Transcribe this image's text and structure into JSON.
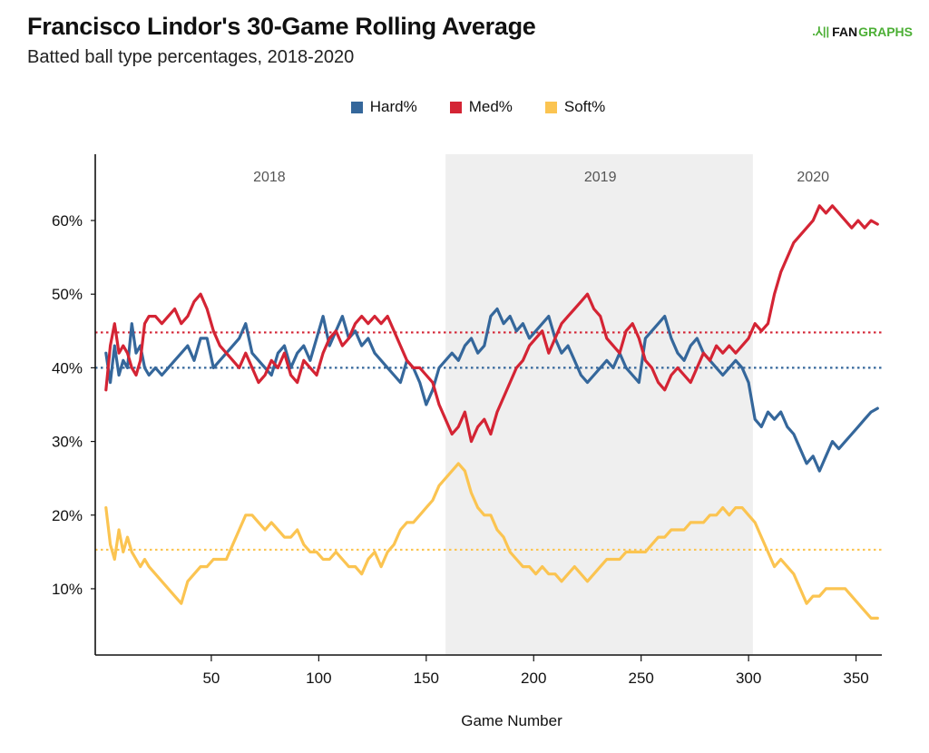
{
  "header": {
    "title": "Francisco Lindor's 30-Game Rolling Average",
    "subtitle": "Batted ball type percentages, 2018-2020",
    "logo_fan": "FAN",
    "logo_graphs": "GRAPHS"
  },
  "legend": [
    {
      "label": "Hard%",
      "color": "#35679b"
    },
    {
      "label": "Med%",
      "color": "#d42434"
    },
    {
      "label": "Soft%",
      "color": "#fbc451"
    }
  ],
  "chart_data": {
    "type": "line",
    "title": "Francisco Lindor's 30-Game Rolling Average",
    "subtitle": "Batted ball type percentages, 2018-2020",
    "xlabel": "Game Number",
    "ylabel": "",
    "xlim": [
      -4,
      362
    ],
    "ylim": [
      1,
      69
    ],
    "xticks": [
      50,
      100,
      150,
      200,
      250,
      300,
      350
    ],
    "xtick_labels": [
      "50",
      "100",
      "150",
      "200",
      "250",
      "300",
      "350"
    ],
    "yticks": [
      10,
      20,
      30,
      40,
      50,
      60
    ],
    "ytick_labels": [
      "10%",
      "20%",
      "30%",
      "40%",
      "50%",
      "60%"
    ],
    "grid": false,
    "legend_position": "top-center",
    "season_bands": [
      {
        "label": "2018",
        "start": -4,
        "end": 159,
        "shaded": false,
        "label_x": 77
      },
      {
        "label": "2019",
        "start": 159,
        "end": 302,
        "shaded": true,
        "label_x": 231
      },
      {
        "label": "2020",
        "start": 302,
        "end": 362,
        "shaded": false,
        "label_x": 330
      }
    ],
    "reference_lines": [
      {
        "series": "Hard%",
        "value": 40.0
      },
      {
        "series": "Med%",
        "value": 44.8
      },
      {
        "series": "Soft%",
        "value": 15.3
      }
    ],
    "x": [
      1,
      3,
      5,
      7,
      9,
      11,
      13,
      15,
      17,
      19,
      21,
      24,
      27,
      30,
      33,
      36,
      39,
      42,
      45,
      48,
      51,
      54,
      57,
      60,
      63,
      66,
      69,
      72,
      75,
      78,
      81,
      84,
      87,
      90,
      93,
      96,
      99,
      102,
      105,
      108,
      111,
      114,
      117,
      120,
      123,
      126,
      129,
      132,
      135,
      138,
      141,
      144,
      147,
      150,
      153,
      156,
      159,
      162,
      165,
      168,
      171,
      174,
      177,
      180,
      183,
      186,
      189,
      192,
      195,
      198,
      201,
      204,
      207,
      210,
      213,
      216,
      219,
      222,
      225,
      228,
      231,
      234,
      237,
      240,
      243,
      246,
      249,
      252,
      255,
      258,
      261,
      264,
      267,
      270,
      273,
      276,
      279,
      282,
      285,
      288,
      291,
      294,
      297,
      300,
      303,
      306,
      309,
      312,
      315,
      318,
      321,
      324,
      327,
      330,
      333,
      336,
      339,
      342,
      345,
      348,
      351,
      354,
      357,
      360
    ],
    "series": [
      {
        "name": "Hard%",
        "color": "#35679b",
        "values": [
          42,
          38,
          43,
          39,
          41,
          40,
          46,
          42,
          43,
          40,
          39,
          40,
          39,
          40,
          41,
          42,
          43,
          41,
          44,
          44,
          40,
          41,
          42,
          43,
          44,
          46,
          42,
          41,
          40,
          39,
          42,
          43,
          40,
          42,
          43,
          41,
          44,
          47,
          43,
          45,
          47,
          44,
          45,
          43,
          44,
          42,
          41,
          40,
          39,
          38,
          41,
          40,
          38,
          35,
          37,
          40,
          41,
          42,
          41,
          43,
          44,
          42,
          43,
          47,
          48,
          46,
          47,
          45,
          46,
          44,
          45,
          46,
          47,
          44,
          42,
          43,
          41,
          39,
          38,
          39,
          40,
          41,
          40,
          42,
          40,
          39,
          38,
          44,
          45,
          46,
          47,
          44,
          42,
          41,
          43,
          44,
          42,
          41,
          40,
          39,
          40,
          41,
          40,
          38,
          33,
          32,
          34,
          33,
          34,
          32,
          31,
          29,
          27,
          28,
          26,
          28,
          30,
          29,
          30,
          31,
          32,
          33,
          34,
          34.5
        ]
      },
      {
        "name": "Med%",
        "color": "#d42434",
        "values": [
          37,
          43,
          46,
          42,
          43,
          42,
          40,
          39,
          41,
          46,
          47,
          47,
          46,
          47,
          48,
          46,
          47,
          49,
          50,
          48,
          45,
          43,
          42,
          41,
          40,
          42,
          40,
          38,
          39,
          41,
          40,
          42,
          39,
          38,
          41,
          40,
          39,
          42,
          44,
          45,
          43,
          44,
          46,
          47,
          46,
          47,
          46,
          47,
          45,
          43,
          41,
          40,
          40,
          39,
          38,
          35,
          33,
          31,
          32,
          34,
          30,
          32,
          33,
          31,
          34,
          36,
          38,
          40,
          41,
          43,
          44,
          45,
          42,
          44,
          46,
          47,
          48,
          49,
          50,
          48,
          47,
          44,
          43,
          42,
          45,
          46,
          44,
          41,
          40,
          38,
          37,
          39,
          40,
          39,
          38,
          40,
          42,
          41,
          43,
          42,
          43,
          42,
          43,
          44,
          46,
          45,
          46,
          50,
          53,
          55,
          57,
          58,
          59,
          60,
          62,
          61,
          62,
          61,
          60,
          59,
          60,
          59,
          60,
          59.5
        ]
      },
      {
        "name": "Soft%",
        "color": "#fbc451",
        "values": [
          21,
          16,
          14,
          18,
          15,
          17,
          15,
          14,
          13,
          14,
          13,
          12,
          11,
          10,
          9,
          8,
          11,
          12,
          13,
          13,
          14,
          14,
          14,
          16,
          18,
          20,
          20,
          19,
          18,
          19,
          18,
          17,
          17,
          18,
          16,
          15,
          15,
          14,
          14,
          15,
          14,
          13,
          13,
          12,
          14,
          15,
          13,
          15,
          16,
          18,
          19,
          19,
          20,
          21,
          22,
          24,
          25,
          26,
          27,
          26,
          23,
          21,
          20,
          20,
          18,
          17,
          15,
          14,
          13,
          13,
          12,
          13,
          12,
          12,
          11,
          12,
          13,
          12,
          11,
          12,
          13,
          14,
          14,
          14,
          15,
          15,
          15,
          15,
          16,
          17,
          17,
          18,
          18,
          18,
          19,
          19,
          19,
          20,
          20,
          21,
          20,
          21,
          21,
          20,
          19,
          17,
          15,
          13,
          14,
          13,
          12,
          10,
          8,
          9,
          9,
          10,
          10,
          10,
          10,
          9,
          8,
          7,
          6,
          6
        ]
      }
    ]
  }
}
